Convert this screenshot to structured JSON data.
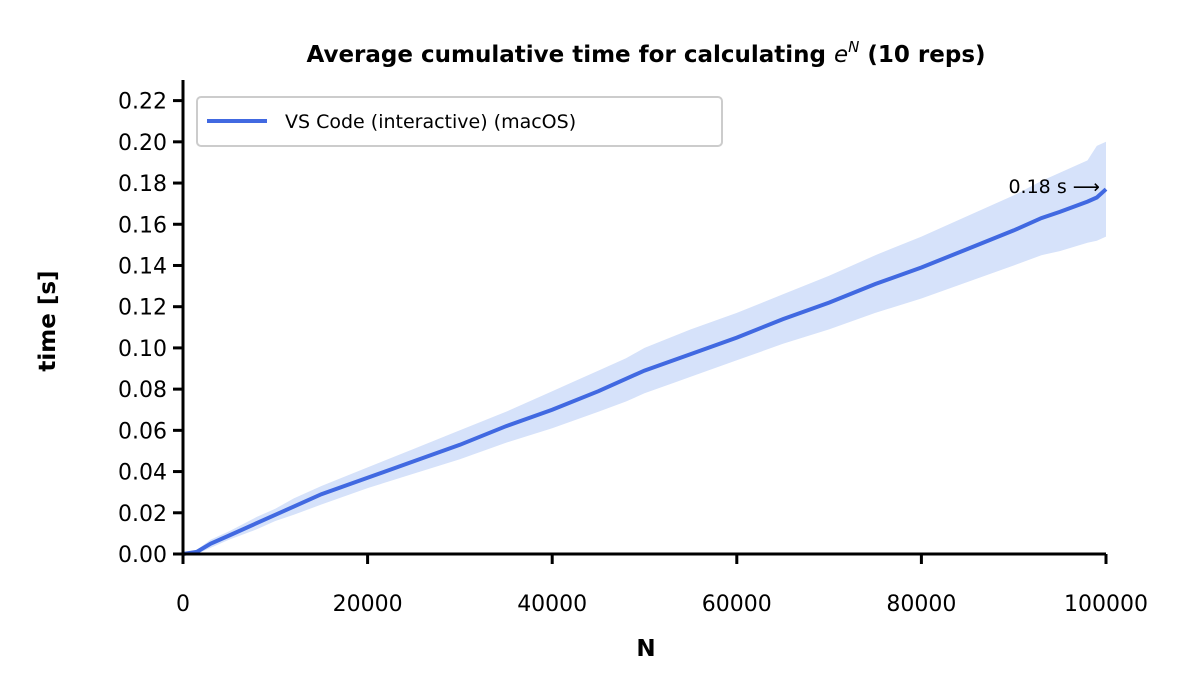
{
  "chart_data": {
    "type": "line",
    "title_prefix": "Average cumulative time for calculating ",
    "title_base": "e",
    "title_sup": "N",
    "title_suffix": " (10 reps)",
    "xlabel": "N",
    "ylabel": "time [s]",
    "xlim": [
      0,
      100000
    ],
    "ylim": [
      0,
      0.23
    ],
    "xticks": [
      "0",
      "20000",
      "40000",
      "60000",
      "80000",
      "100000"
    ],
    "yticks": [
      "0.00",
      "0.02",
      "0.04",
      "0.06",
      "0.08",
      "0.10",
      "0.12",
      "0.14",
      "0.16",
      "0.18",
      "0.20",
      "0.22"
    ],
    "grid": false,
    "legend_position": "top-left",
    "series": [
      {
        "name": "VS Code (interactive) (macOS)",
        "color": "#4169e1",
        "band_color": "#d6e2fa",
        "x": [
          0,
          1500,
          3000,
          5000,
          8000,
          10000,
          12000,
          15000,
          20000,
          25000,
          30000,
          35000,
          40000,
          45000,
          48000,
          50000,
          55000,
          60000,
          65000,
          70000,
          75000,
          80000,
          85000,
          90000,
          93000,
          95000,
          98000,
          99000,
          100000
        ],
        "mean": [
          0.0,
          0.001,
          0.005,
          0.009,
          0.015,
          0.019,
          0.023,
          0.029,
          0.037,
          0.045,
          0.053,
          0.062,
          0.07,
          0.079,
          0.085,
          0.089,
          0.097,
          0.105,
          0.114,
          0.122,
          0.131,
          0.139,
          0.148,
          0.157,
          0.163,
          0.166,
          0.171,
          0.173,
          0.177
        ],
        "lower": [
          0.0,
          0.0,
          0.003,
          0.007,
          0.012,
          0.016,
          0.019,
          0.024,
          0.032,
          0.039,
          0.046,
          0.054,
          0.061,
          0.069,
          0.074,
          0.078,
          0.086,
          0.094,
          0.102,
          0.109,
          0.117,
          0.124,
          0.132,
          0.14,
          0.145,
          0.147,
          0.151,
          0.152,
          0.154
        ],
        "upper": [
          0.0,
          0.002,
          0.007,
          0.011,
          0.018,
          0.022,
          0.027,
          0.033,
          0.042,
          0.051,
          0.06,
          0.069,
          0.079,
          0.089,
          0.095,
          0.1,
          0.109,
          0.117,
          0.126,
          0.135,
          0.145,
          0.154,
          0.164,
          0.174,
          0.181,
          0.185,
          0.191,
          0.198,
          0.2
        ]
      }
    ],
    "annotation": {
      "text": "0.18 s ⟶",
      "x": 100000,
      "y": 0.177
    }
  }
}
